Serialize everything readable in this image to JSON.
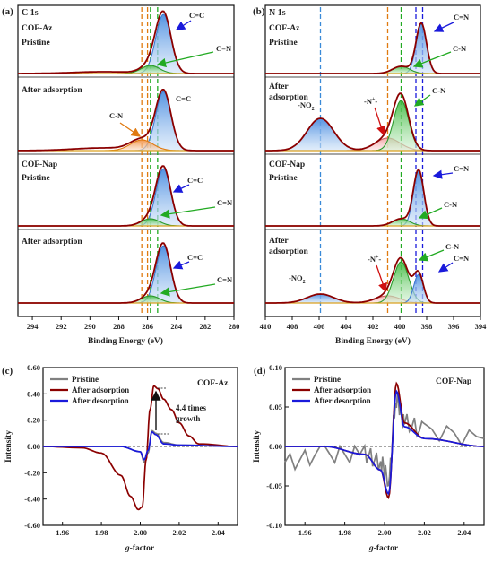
{
  "panels": {
    "a": {
      "letter": "(a)",
      "element": "C 1s",
      "xlabel": "Binding Energy (eV)",
      "xticks": [
        "294",
        "292",
        "290",
        "288",
        "286",
        "284",
        "282",
        "280"
      ],
      "labels": {
        "cof_az": "COF-Az",
        "pristine": "Pristine",
        "after": "After adsorption",
        "cof_nap": "COF-Nap",
        "pristine2": "Pristine",
        "after2": "After adsorption",
        "cc1": "C=C",
        "cn1": "C=N",
        "cc2": "C=C",
        "c_n": "C-N",
        "cc3": "C=C",
        "cn3": "C=N",
        "cc4": "C=C",
        "cn4": "C=N"
      }
    },
    "b": {
      "letter": "(b)",
      "element": "N 1s",
      "xlabel": "Binding Energy (eV)",
      "xticks": [
        "410",
        "408",
        "406",
        "404",
        "402",
        "400",
        "398",
        "396",
        "394"
      ],
      "labels": {
        "cof_az": "COF-Az",
        "pristine": "Pristine",
        "after_a": "After",
        "after_b": "adsorption",
        "cof_nap": "COF-Nap",
        "pristine2": "Pristine",
        "after2_a": "After",
        "after2_b": "adsorption",
        "cn_d1": "C=N",
        "cn_s1": "C-N",
        "no2": "-NO",
        "no2_sub": "2",
        "nplus": "-N",
        "nplus_sup": "+",
        "cn_s2": "C-N",
        "cn_d3": "C=N",
        "cn_s3": "C-N",
        "no2b": "-NO",
        "no2b_sub": "2",
        "nplus2": "-N",
        "nplus2_sup": "+",
        "cn_s4": "C-N",
        "cn_d4": "C=N"
      }
    },
    "c": {
      "letter": "(c)",
      "title": "COF-Az",
      "ylabel": "Intensity",
      "xlabel_g": "g",
      "xlabel_rest": "-factor",
      "annotation_1": "4.4 times",
      "annotation_2": "growth",
      "xticks": [
        "1.96",
        "1.98",
        "2.00",
        "2.02",
        "2.04"
      ],
      "yticks": [
        "0.60",
        "0.40",
        "0.20",
        "0.00",
        "-0.20",
        "-0.40",
        "-0.60"
      ]
    },
    "d": {
      "letter": "(d)",
      "title": "COF-Nap",
      "ylabel": "Intensity",
      "xlabel_g": "g",
      "xlabel_rest": "-factor",
      "xticks": [
        "1.96",
        "1.98",
        "2.00",
        "2.02",
        "2.04"
      ],
      "yticks": [
        "0.10",
        "0.05",
        "0.00",
        "-0.05",
        "-0.10"
      ]
    }
  },
  "colors": {
    "dark_red": "#8b0000",
    "blue": "#1a1adb",
    "gray": "#808080",
    "green": "#22aa22",
    "orange": "#e07a10",
    "black": "#111111"
  },
  "chart_data": [
    {
      "type": "line",
      "panel": "a",
      "xlabel": "Binding Energy (eV)",
      "xlim": [
        294,
        280
      ],
      "reversed_x": true,
      "components": [
        {
          "name": "C=C",
          "center_ev": 284.9
        },
        {
          "name": "C=N",
          "center_ev": 285.8
        },
        {
          "name": "C-N",
          "center_ev": 286.4
        }
      ],
      "spectra": [
        "COF-Az Pristine",
        "COF-Az After adsorption",
        "COF-Nap Pristine",
        "COF-Nap After adsorption"
      ]
    },
    {
      "type": "line",
      "panel": "b",
      "xlabel": "Binding Energy (eV)",
      "xlim": [
        410,
        394
      ],
      "reversed_x": true,
      "components": [
        {
          "name": "C=N",
          "center_ev": 398.4
        },
        {
          "name": "C-N",
          "center_ev": 399.9
        },
        {
          "name": "-N+-",
          "center_ev": 400.9
        },
        {
          "name": "-NO2",
          "center_ev": 405.9
        }
      ],
      "spectra": [
        "COF-Az Pristine",
        "COF-Az After adsorption",
        "COF-Nap Pristine",
        "COF-Nap After adsorption"
      ]
    },
    {
      "type": "line",
      "panel": "c",
      "title": "COF-Az",
      "ylabel": "Intensity",
      "xlabel": "g-factor",
      "xlim": [
        1.95,
        2.05
      ],
      "ylim": [
        -0.6,
        0.6
      ],
      "series": [
        {
          "name": "Pristine",
          "color": "#808080",
          "x": [
            1.95,
            1.99,
            2.0,
            2.002,
            2.004,
            2.006,
            2.008,
            2.012,
            2.02,
            2.05
          ],
          "y": [
            0.0,
            0.0,
            -0.04,
            -0.12,
            -0.05,
            0.12,
            0.1,
            0.03,
            0.01,
            0.0
          ]
        },
        {
          "name": "After adsorption",
          "color": "#8b0000",
          "x": [
            1.95,
            1.97,
            1.98,
            1.99,
            1.995,
            1.999,
            2.001,
            2.003,
            2.005,
            2.007,
            2.009,
            2.012,
            2.016,
            2.02,
            2.025,
            2.03,
            2.05
          ],
          "y": [
            0.0,
            -0.01,
            -0.05,
            -0.22,
            -0.38,
            -0.48,
            -0.46,
            -0.1,
            0.28,
            0.46,
            0.44,
            0.36,
            0.28,
            0.18,
            0.08,
            0.02,
            0.0
          ]
        },
        {
          "name": "After desorption",
          "color": "#1a1adb",
          "x": [
            1.95,
            1.99,
            2.0,
            2.002,
            2.004,
            2.006,
            2.008,
            2.012,
            2.02,
            2.05
          ],
          "y": [
            0.0,
            0.0,
            -0.04,
            -0.1,
            -0.03,
            0.11,
            0.09,
            0.02,
            0.01,
            0.0
          ]
        }
      ]
    },
    {
      "type": "line",
      "panel": "d",
      "title": "COF-Nap",
      "ylabel": "Intensity",
      "xlabel": "g-factor",
      "xlim": [
        1.95,
        2.05
      ],
      "ylim": [
        -0.1,
        0.1
      ],
      "series": [
        {
          "name": "Pristine",
          "color": "#808080",
          "x": [
            1.95,
            1.97,
            1.99,
            1.998,
            2.002,
            2.006,
            2.01,
            2.02,
            2.05
          ],
          "y": [
            -0.02,
            -0.01,
            -0.01,
            -0.02,
            -0.04,
            0.06,
            0.03,
            0.02,
            0.01
          ]
        },
        {
          "name": "After adsorption",
          "color": "#8b0000",
          "x": [
            1.95,
            1.97,
            1.99,
            1.998,
            2.002,
            2.006,
            2.01,
            2.02,
            2.05
          ],
          "y": [
            0.0,
            0.0,
            -0.01,
            -0.03,
            -0.065,
            0.08,
            0.03,
            0.01,
            0.0
          ]
        },
        {
          "name": "After desorption",
          "color": "#1a1adb",
          "x": [
            1.95,
            1.97,
            1.99,
            1.998,
            2.002,
            2.006,
            2.01,
            2.02,
            2.05
          ],
          "y": [
            0.0,
            0.0,
            -0.01,
            -0.03,
            -0.06,
            0.07,
            0.025,
            0.01,
            0.0
          ]
        }
      ]
    }
  ]
}
